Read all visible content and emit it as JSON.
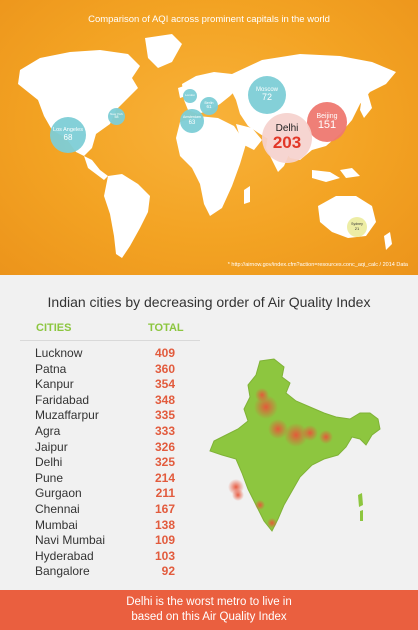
{
  "world": {
    "title": "Comparison of AQI across prominent capitals in the world",
    "source": "* http://airnow.gov/index.cfm?action=resources.conc_aqi_calc  /  2014 Data",
    "bubbles": {
      "los_angeles": {
        "city": "Los Angeles",
        "value": "68"
      },
      "new_york": {
        "city": "New York",
        "value": "58"
      },
      "london": {
        "city": "London",
        "value": ""
      },
      "berlin": {
        "city": "Berlin",
        "value": "61"
      },
      "amsterdam": {
        "city": "Amsterdam",
        "value": "63"
      },
      "moscow": {
        "city": "Moscow",
        "value": "72"
      },
      "beijing": {
        "city": "Beijing",
        "value": "151"
      },
      "delhi": {
        "city": "Delhi",
        "value": "203"
      },
      "sydney": {
        "city": "Sydney",
        "value": "21"
      }
    }
  },
  "india": {
    "heading": "Indian cities by decreasing order of Air Quality Index",
    "col_cities": "CITIES",
    "col_total": "TOTAL",
    "rows": [
      {
        "city": "Lucknow",
        "aqi": "409"
      },
      {
        "city": "Patna",
        "aqi": "360"
      },
      {
        "city": "Kanpur",
        "aqi": "354"
      },
      {
        "city": "Faridabad",
        "aqi": "348"
      },
      {
        "city": "Muzaffarpur",
        "aqi": "335"
      },
      {
        "city": "Agra",
        "aqi": "333"
      },
      {
        "city": "Jaipur",
        "aqi": "326"
      },
      {
        "city": "Delhi",
        "aqi": "325"
      },
      {
        "city": "Pune",
        "aqi": "214"
      },
      {
        "city": "Gurgaon",
        "aqi": "211"
      },
      {
        "city": "Chennai",
        "aqi": "167"
      },
      {
        "city": "Mumbai",
        "aqi": "138"
      },
      {
        "city": "Navi Mumbai",
        "aqi": "109"
      },
      {
        "city": "Hyderabad",
        "aqi": "103"
      },
      {
        "city": "Bangalore",
        "aqi": "92"
      }
    ]
  },
  "footer": {
    "line1": "Delhi is the worst metro to live in",
    "line2": "based on this Air Quality Index"
  },
  "colors": {
    "orange": "#f3a323",
    "green": "#8cc63f",
    "red": "#e25b3d",
    "footer": "#ea5f3f"
  }
}
